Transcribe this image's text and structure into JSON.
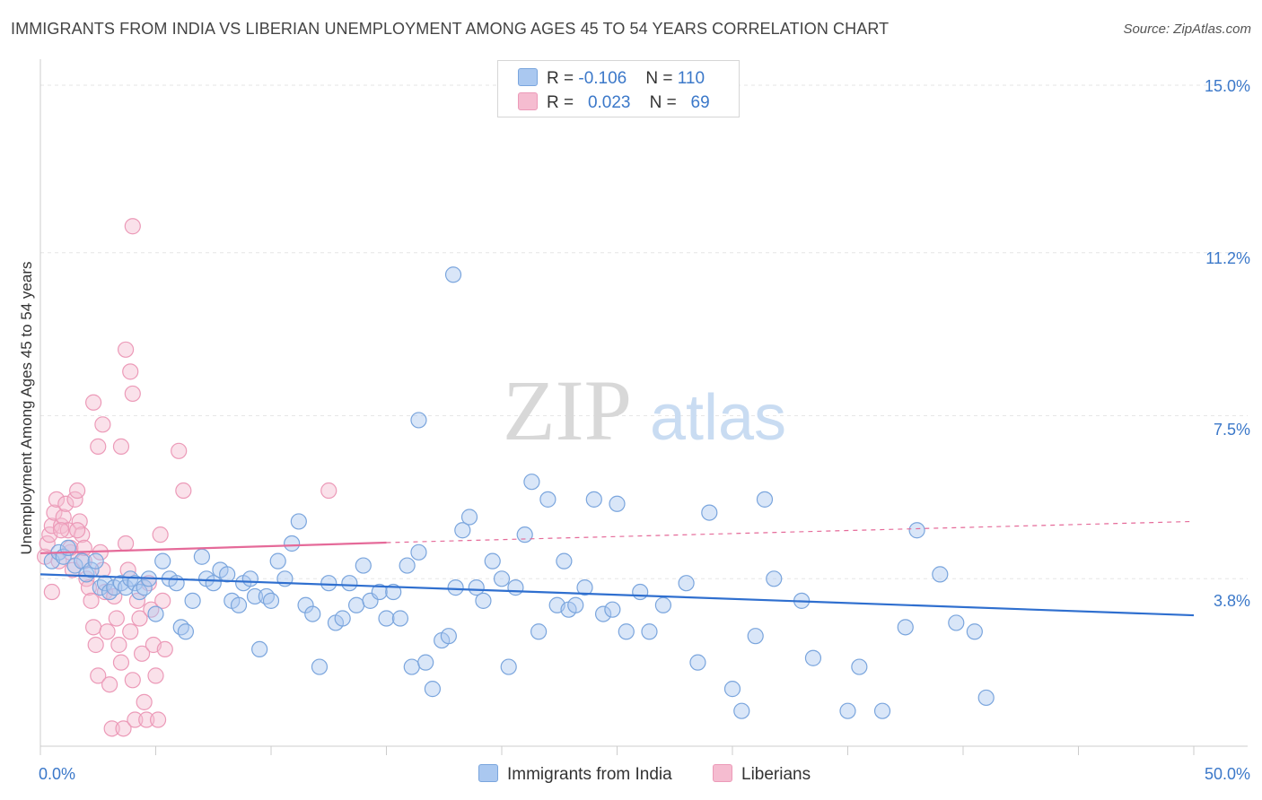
{
  "title": "IMMIGRANTS FROM INDIA VS LIBERIAN UNEMPLOYMENT AMONG AGES 45 TO 54 YEARS CORRELATION CHART",
  "source": "Source: ZipAtlas.com",
  "watermark": {
    "zip": "ZIP",
    "atlas": "atlas"
  },
  "legend": {
    "india": {
      "r_label": "R = ",
      "r_value": "-0.106",
      "n_label": "N = ",
      "n_value": "110"
    },
    "liberia": {
      "r_label": "R = ",
      "r_value": "0.023",
      "n_label": "N = ",
      "n_value": "69"
    }
  },
  "colors": {
    "india_fill": "#aac8f0",
    "india_stroke": "#7aa5dd",
    "india_line": "#2f6fcf",
    "liberia_fill": "#f5bcd0",
    "liberia_stroke": "#ec9ab8",
    "liberia_line": "#e56a99",
    "axis_text": "#3b78c9",
    "grid": "#e6e6e6"
  },
  "chart_data": {
    "type": "scatter",
    "title": "IMMIGRANTS FROM INDIA VS LIBERIAN UNEMPLOYMENT AMONG AGES 45 TO 54 YEARS CORRELATION CHART",
    "xlabel": "",
    "ylabel": "Unemployment Among Ages 45 to 54 years",
    "xlim": [
      0,
      50
    ],
    "ylim": [
      0,
      15
    ],
    "x_tick_labels": [
      "0.0%",
      "50.0%"
    ],
    "y_ticks": [
      3.8,
      7.5,
      11.2,
      15.0
    ],
    "y_tick_labels": [
      "3.8%",
      "7.5%",
      "11.2%",
      "15.0%"
    ],
    "series": [
      {
        "name": "Immigrants from India",
        "r": -0.106,
        "n": 110,
        "trend": {
          "x": [
            0,
            50
          ],
          "y": [
            3.9,
            2.97
          ]
        },
        "points": [
          [
            0.5,
            4.2
          ],
          [
            0.8,
            4.4
          ],
          [
            1.0,
            4.3
          ],
          [
            1.2,
            4.5
          ],
          [
            1.5,
            4.1
          ],
          [
            1.8,
            4.2
          ],
          [
            2.0,
            3.9
          ],
          [
            2.2,
            4.0
          ],
          [
            2.4,
            4.2
          ],
          [
            2.6,
            3.6
          ],
          [
            2.8,
            3.7
          ],
          [
            3.0,
            3.5
          ],
          [
            3.2,
            3.6
          ],
          [
            3.5,
            3.7
          ],
          [
            3.7,
            3.6
          ],
          [
            3.9,
            3.8
          ],
          [
            4.1,
            3.7
          ],
          [
            4.3,
            3.5
          ],
          [
            4.5,
            3.6
          ],
          [
            4.7,
            3.8
          ],
          [
            5.0,
            3.0
          ],
          [
            5.3,
            4.2
          ],
          [
            5.6,
            3.8
          ],
          [
            5.9,
            3.7
          ],
          [
            6.1,
            2.7
          ],
          [
            6.3,
            2.6
          ],
          [
            6.6,
            3.3
          ],
          [
            7.0,
            4.3
          ],
          [
            7.2,
            3.8
          ],
          [
            7.5,
            3.7
          ],
          [
            7.8,
            4.0
          ],
          [
            8.1,
            3.9
          ],
          [
            8.3,
            3.3
          ],
          [
            8.6,
            3.2
          ],
          [
            8.8,
            3.7
          ],
          [
            9.1,
            3.8
          ],
          [
            9.3,
            3.4
          ],
          [
            9.5,
            2.2
          ],
          [
            9.8,
            3.4
          ],
          [
            10.0,
            3.3
          ],
          [
            10.3,
            4.2
          ],
          [
            10.6,
            3.8
          ],
          [
            10.9,
            4.6
          ],
          [
            11.2,
            5.1
          ],
          [
            11.5,
            3.2
          ],
          [
            11.8,
            3.0
          ],
          [
            12.1,
            1.8
          ],
          [
            12.5,
            3.7
          ],
          [
            12.8,
            2.8
          ],
          [
            13.1,
            2.9
          ],
          [
            13.4,
            3.7
          ],
          [
            13.7,
            3.2
          ],
          [
            14.0,
            4.1
          ],
          [
            14.3,
            3.3
          ],
          [
            14.7,
            3.5
          ],
          [
            15.0,
            2.9
          ],
          [
            15.3,
            3.5
          ],
          [
            15.6,
            2.9
          ],
          [
            15.9,
            4.1
          ],
          [
            16.1,
            1.8
          ],
          [
            16.4,
            4.4
          ],
          [
            16.7,
            1.9
          ],
          [
            17.0,
            1.3
          ],
          [
            17.4,
            2.4
          ],
          [
            17.7,
            2.5
          ],
          [
            18.0,
            3.6
          ],
          [
            18.3,
            4.9
          ],
          [
            18.6,
            5.2
          ],
          [
            18.9,
            3.6
          ],
          [
            19.2,
            3.3
          ],
          [
            19.6,
            4.2
          ],
          [
            20.0,
            3.8
          ],
          [
            20.3,
            1.8
          ],
          [
            20.6,
            3.6
          ],
          [
            21.0,
            4.8
          ],
          [
            21.3,
            6.0
          ],
          [
            21.6,
            2.6
          ],
          [
            22.0,
            5.6
          ],
          [
            22.4,
            3.2
          ],
          [
            22.7,
            4.2
          ],
          [
            22.9,
            3.1
          ],
          [
            23.2,
            3.2
          ],
          [
            23.6,
            3.6
          ],
          [
            24.0,
            5.6
          ],
          [
            24.4,
            3.0
          ],
          [
            24.8,
            3.1
          ],
          [
            25.0,
            5.5
          ],
          [
            25.4,
            2.6
          ],
          [
            26.0,
            3.5
          ],
          [
            26.4,
            2.6
          ],
          [
            27.0,
            3.2
          ],
          [
            28.0,
            3.7
          ],
          [
            29.0,
            5.3
          ],
          [
            28.5,
            1.9
          ],
          [
            30.0,
            1.3
          ],
          [
            30.4,
            0.8
          ],
          [
            31.0,
            2.5
          ],
          [
            31.4,
            5.6
          ],
          [
            31.8,
            3.8
          ],
          [
            33.0,
            3.3
          ],
          [
            33.5,
            2.0
          ],
          [
            35.0,
            0.8
          ],
          [
            35.5,
            1.8
          ],
          [
            36.5,
            0.8
          ],
          [
            37.5,
            2.7
          ],
          [
            38.0,
            4.9
          ],
          [
            39.0,
            3.9
          ],
          [
            39.7,
            2.8
          ],
          [
            40.5,
            2.6
          ],
          [
            41.0,
            1.1
          ],
          [
            16.4,
            7.4
          ],
          [
            17.9,
            10.7
          ]
        ]
      },
      {
        "name": "Liberians",
        "r": 0.023,
        "n": 69,
        "trend": {
          "x": [
            0,
            15
          ],
          "y": [
            4.38,
            4.62
          ]
        },
        "trend_dashed": {
          "x": [
            15,
            50
          ],
          "y": [
            4.62,
            5.1
          ]
        },
        "points": [
          [
            0.2,
            4.3
          ],
          [
            0.3,
            4.6
          ],
          [
            0.4,
            4.8
          ],
          [
            0.5,
            5.0
          ],
          [
            0.6,
            5.3
          ],
          [
            0.7,
            5.6
          ],
          [
            0.8,
            4.2
          ],
          [
            0.9,
            5.0
          ],
          [
            1.0,
            5.2
          ],
          [
            1.1,
            5.5
          ],
          [
            1.2,
            4.9
          ],
          [
            1.3,
            4.4
          ],
          [
            1.4,
            4.0
          ],
          [
            1.5,
            5.6
          ],
          [
            1.6,
            5.8
          ],
          [
            1.7,
            5.1
          ],
          [
            1.8,
            4.8
          ],
          [
            1.9,
            4.2
          ],
          [
            0.5,
            3.5
          ],
          [
            0.9,
            4.9
          ],
          [
            1.3,
            4.5
          ],
          [
            1.6,
            4.9
          ],
          [
            1.9,
            4.5
          ],
          [
            2.0,
            3.8
          ],
          [
            2.1,
            3.6
          ],
          [
            2.2,
            3.3
          ],
          [
            2.3,
            2.7
          ],
          [
            2.4,
            2.3
          ],
          [
            2.5,
            1.6
          ],
          [
            2.6,
            4.4
          ],
          [
            2.7,
            4.0
          ],
          [
            2.8,
            3.5
          ],
          [
            2.9,
            2.6
          ],
          [
            3.0,
            1.4
          ],
          [
            3.1,
            0.4
          ],
          [
            3.2,
            3.4
          ],
          [
            3.3,
            2.9
          ],
          [
            3.4,
            2.3
          ],
          [
            3.5,
            1.9
          ],
          [
            3.6,
            0.4
          ],
          [
            3.7,
            4.6
          ],
          [
            3.8,
            4.0
          ],
          [
            3.9,
            2.6
          ],
          [
            4.0,
            1.5
          ],
          [
            4.1,
            0.6
          ],
          [
            4.2,
            3.3
          ],
          [
            4.3,
            2.9
          ],
          [
            4.4,
            2.1
          ],
          [
            4.5,
            1.0
          ],
          [
            4.6,
            0.6
          ],
          [
            4.7,
            3.7
          ],
          [
            4.8,
            3.1
          ],
          [
            4.9,
            2.3
          ],
          [
            5.0,
            1.6
          ],
          [
            5.1,
            0.6
          ],
          [
            5.2,
            4.8
          ],
          [
            5.3,
            3.3
          ],
          [
            5.4,
            2.2
          ],
          [
            4.0,
            11.8
          ],
          [
            3.7,
            9.0
          ],
          [
            3.9,
            8.5
          ],
          [
            4.0,
            8.0
          ],
          [
            2.3,
            7.8
          ],
          [
            2.7,
            7.3
          ],
          [
            2.5,
            6.8
          ],
          [
            3.5,
            6.8
          ],
          [
            6.0,
            6.7
          ],
          [
            6.2,
            5.8
          ],
          [
            12.5,
            5.8
          ]
        ]
      }
    ]
  },
  "bottom_legend": [
    "Immigrants from India",
    "Liberians"
  ]
}
